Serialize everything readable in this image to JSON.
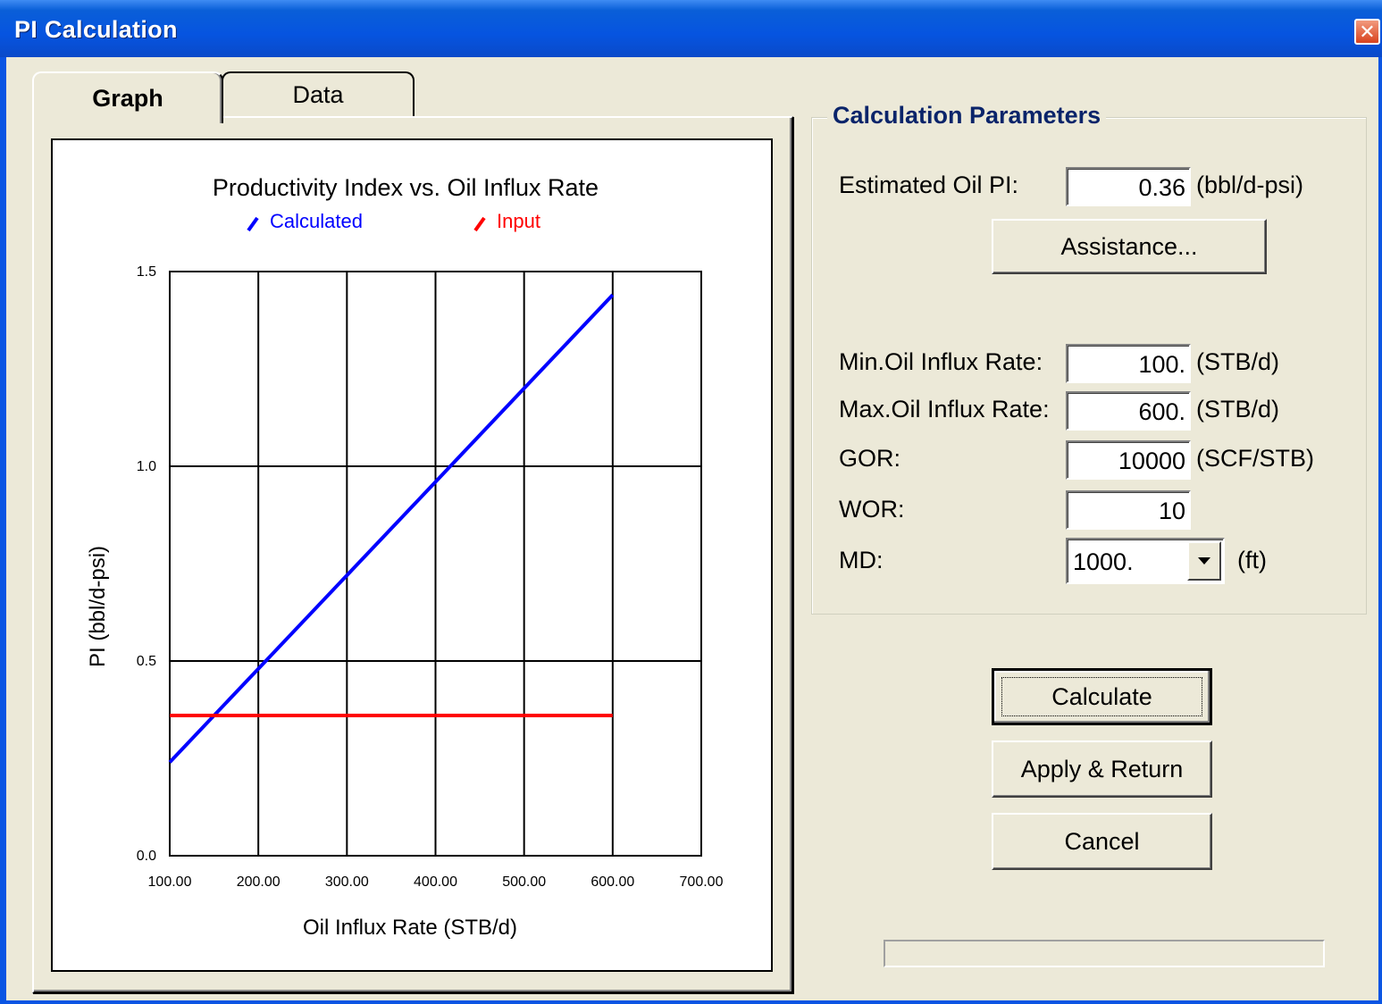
{
  "window": {
    "title": "PI Calculation"
  },
  "tabs": [
    {
      "label": "Graph",
      "active": true
    },
    {
      "label": "Data",
      "active": false
    }
  ],
  "chart_data": {
    "type": "line",
    "title": "Productivity Index vs. Oil Influx Rate",
    "xlabel": "Oil Influx Rate (STB/d)",
    "ylabel": "PI  (bbl/d-psi)",
    "xlim": [
      100,
      700
    ],
    "ylim": [
      0,
      1.5
    ],
    "x_ticks": [
      "100.00",
      "200.00",
      "300.00",
      "400.00",
      "500.00",
      "600.00",
      "700.00"
    ],
    "y_ticks": [
      "0.0",
      "0.5",
      "1.0",
      "1.5"
    ],
    "grid": true,
    "legend_placement": "top",
    "series": [
      {
        "name": "Calculated",
        "color": "#0000ff",
        "x": [
          100,
          200,
          300,
          400,
          500,
          600
        ],
        "y": [
          0.24,
          0.48,
          0.72,
          0.96,
          1.2,
          1.44
        ]
      },
      {
        "name": "Input",
        "color": "#ff0000",
        "x": [
          100,
          600
        ],
        "y": [
          0.36,
          0.36
        ]
      }
    ]
  },
  "params": {
    "group_title": "Calculation Parameters",
    "est_pi": {
      "label": "Estimated Oil PI:",
      "value": "0.36",
      "unit": "(bbl/d-psi)"
    },
    "assistance_label": "Assistance...",
    "min_rate": {
      "label": "Min.Oil Influx Rate:",
      "value": "100.",
      "unit": "(STB/d)"
    },
    "max_rate": {
      "label": "Max.Oil Influx Rate:",
      "value": "600.",
      "unit": "(STB/d)"
    },
    "gor": {
      "label": "GOR:",
      "value": "10000",
      "unit": "(SCF/STB)"
    },
    "wor": {
      "label": "WOR:",
      "value": "10"
    },
    "md": {
      "label": "MD:",
      "value": "1000.",
      "unit": "(ft)"
    }
  },
  "buttons": {
    "calculate": "Calculate",
    "apply_return": "Apply & Return",
    "cancel": "Cancel"
  },
  "progress": {
    "value": 0
  }
}
